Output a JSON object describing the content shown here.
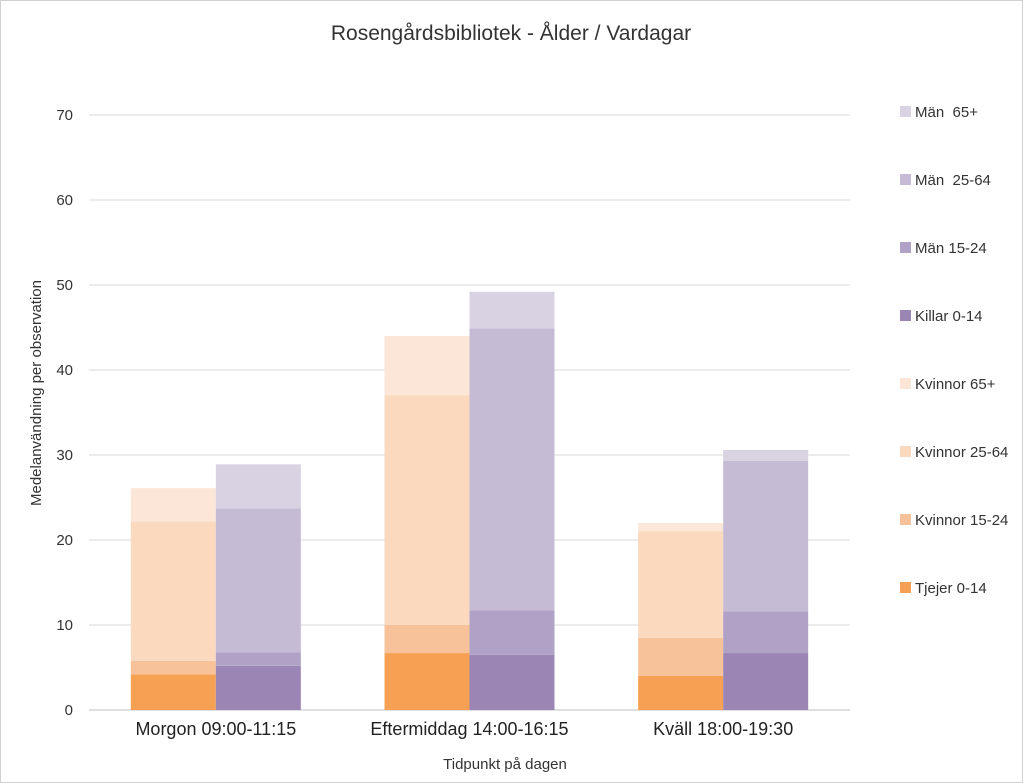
{
  "chart_data": {
    "type": "bar",
    "stacked": true,
    "grouped": true,
    "title": "Rosengårdsbibliotek - Ålder / Vardagar",
    "xlabel": "Tidpunkt på dagen",
    "ylabel": "Medelanvändning per observation",
    "ylim": [
      0,
      70
    ],
    "yticks": [
      0,
      10,
      20,
      30,
      40,
      50,
      60,
      70
    ],
    "grid": true,
    "legend_position": "right",
    "categories": [
      "Morgon 09:00-11:15",
      "Eftermiddag 14:00-16:15",
      "Kväll 18:00-19:30"
    ],
    "groups": [
      {
        "key": "kvinnor",
        "series": [
          {
            "name": "Tjejer 0-14",
            "color": "#f5a052",
            "values": [
              4.2,
              6.7,
              4.0
            ]
          },
          {
            "name": "Kvinnor 15-24",
            "color": "#f7c29a",
            "values": [
              1.6,
              3.3,
              4.5
            ]
          },
          {
            "name": "Kvinnor 25-64",
            "color": "#fad9bf",
            "values": [
              16.4,
              27.0,
              12.5
            ]
          },
          {
            "name": "Kvinnor 65+",
            "color": "#fce6d7",
            "values": [
              3.9,
              7.0,
              1.0
            ]
          }
        ]
      },
      {
        "key": "man",
        "series": [
          {
            "name": "Killar 0-14",
            "color": "#9a85b5",
            "values": [
              5.2,
              6.5,
              6.7
            ]
          },
          {
            "name": "Män 15-24",
            "color": "#b0a2c6",
            "values": [
              1.6,
              5.2,
              4.9
            ]
          },
          {
            "name": "Män  25-64",
            "color": "#c6bbd5",
            "values": [
              16.9,
              33.2,
              17.7
            ]
          },
          {
            "name": "Män  65+",
            "color": "#d8d2e3",
            "values": [
              5.2,
              4.3,
              1.3
            ]
          }
        ]
      }
    ],
    "legend_order": [
      "Män  65+",
      "Män  25-64",
      "Män 15-24",
      "Killar 0-14",
      "Kvinnor 65+",
      "Kvinnor 25-64",
      "Kvinnor 15-24",
      "Tjejer 0-14"
    ]
  }
}
